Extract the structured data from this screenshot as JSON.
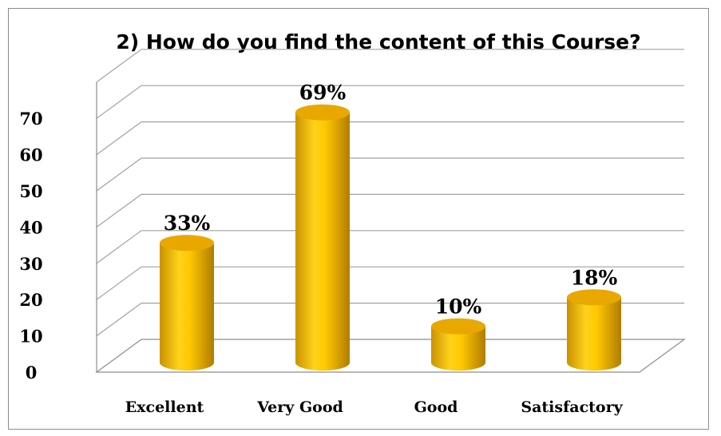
{
  "chart_data": {
    "type": "bar",
    "title": "2)  How do you find the content of this Course?",
    "categories": [
      "Excellent",
      "Very Good",
      "Good",
      "Satisfactory"
    ],
    "values": [
      33,
      69,
      10,
      18
    ],
    "data_labels": [
      "33%",
      "69%",
      "10%",
      "18%"
    ],
    "yticks": [
      "0",
      "10",
      "20",
      "30",
      "40",
      "50",
      "60",
      "70"
    ],
    "ylim": [
      0,
      80
    ],
    "grid": true,
    "legend": "none",
    "colors": {
      "bar_light": "#ffd21a",
      "bar_mid": "#f2b400",
      "bar_dark": "#b88400",
      "bar_top": "#e8a800",
      "grid": "#a0a0a0",
      "axis": "#8c8c8c"
    }
  }
}
